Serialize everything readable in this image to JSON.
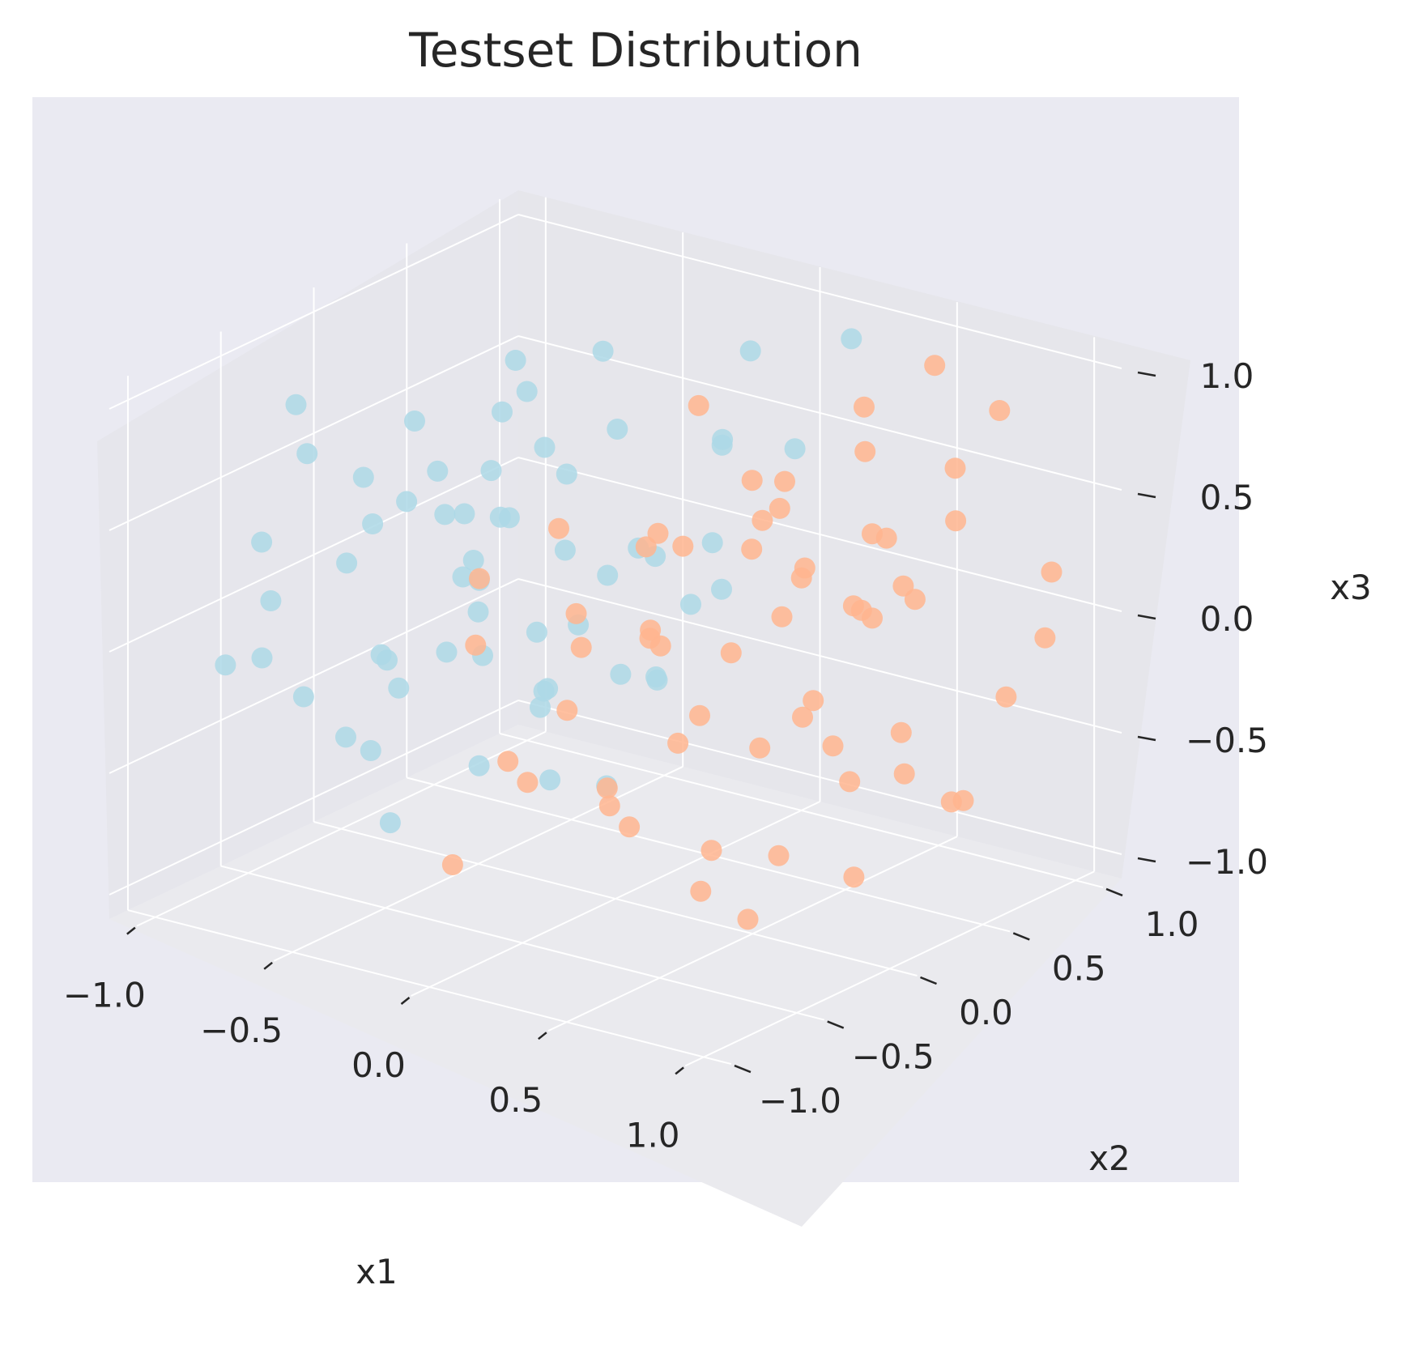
{
  "chart_data": {
    "type": "scatter",
    "projection": "3d",
    "title": "Testset Distribution",
    "xlabel": "x1",
    "ylabel": "x2",
    "zlabel": "x3",
    "xlim": [
      -1.1,
      1.1
    ],
    "ylim": [
      -1.1,
      1.1
    ],
    "zlim": [
      -1.1,
      1.1
    ],
    "xticks": [
      "−1.0",
      "−0.5",
      "0.0",
      "0.5",
      "1.0"
    ],
    "yticks": [
      "−1.0",
      "−0.5",
      "0.0",
      "0.5",
      "1.0"
    ],
    "zticks": [
      "−1.0",
      "−0.5",
      "0.0",
      "0.5",
      "1.0"
    ],
    "grid": true,
    "style": "seaborn-darkgrid",
    "colors": {
      "background": "#eaeaf2",
      "grid": "#ffffff",
      "blue_points": "#add8e6",
      "orange_points": "#ffb58f"
    },
    "series": [
      {
        "color": "#add8e6",
        "points": [
          [
            -0.95,
            -0.5,
            -0.2
          ],
          [
            -0.9,
            -0.35,
            -0.4
          ],
          [
            -0.85,
            -0.6,
            0.1
          ],
          [
            -0.8,
            0.1,
            0.6
          ],
          [
            -0.75,
            -0.2,
            0.3
          ],
          [
            -0.7,
            0.3,
            -0.1
          ],
          [
            -0.65,
            -0.7,
            0.8
          ],
          [
            -0.6,
            0.5,
            -0.6
          ],
          [
            -0.55,
            -0.4,
            -0.8
          ],
          [
            -0.5,
            0.2,
            0.9
          ],
          [
            -0.45,
            -0.1,
            0.2
          ],
          [
            -0.4,
            0.6,
            0.5
          ],
          [
            -0.35,
            -0.8,
            -0.3
          ],
          [
            -0.3,
            0.4,
            0.0
          ],
          [
            -0.25,
            -0.3,
            0.7
          ],
          [
            -0.2,
            0.7,
            -0.2
          ],
          [
            -0.15,
            -0.6,
            0.4
          ],
          [
            -0.1,
            0.1,
            -0.7
          ],
          [
            -0.05,
            0.8,
            0.85
          ],
          [
            0.0,
            -0.2,
            0.1
          ],
          [
            0.05,
            0.5,
            0.6
          ],
          [
            0.1,
            -0.5,
            -0.4
          ],
          [
            0.15,
            0.3,
            0.3
          ],
          [
            0.2,
            -0.7,
            0.0
          ],
          [
            0.25,
            0.9,
            0.95
          ],
          [
            -0.98,
            0.0,
            0.0
          ],
          [
            -0.92,
            0.4,
            0.25
          ],
          [
            -0.88,
            -0.8,
            -0.1
          ],
          [
            -0.82,
            0.6,
            0.45
          ],
          [
            -0.78,
            -0.3,
            -0.55
          ],
          [
            -0.72,
            0.8,
            0.15
          ],
          [
            -0.68,
            -0.9,
            0.5
          ],
          [
            -0.62,
            0.2,
            -0.35
          ],
          [
            -0.58,
            -0.5,
            0.65
          ],
          [
            -0.52,
            0.7,
            0.75
          ],
          [
            -0.48,
            -0.2,
            -0.15
          ],
          [
            -0.42,
            0.0,
            0.35
          ],
          [
            -0.38,
            -0.7,
            0.05
          ],
          [
            -0.32,
            0.5,
            -0.45
          ],
          [
            -0.28,
            -0.4,
            0.55
          ],
          [
            -0.22,
            0.9,
            0.4
          ],
          [
            -0.18,
            -0.1,
            -0.25
          ],
          [
            -0.12,
            0.3,
            0.2
          ],
          [
            -0.08,
            -0.8,
            0.75
          ],
          [
            -0.02,
            0.6,
            -0.05
          ],
          [
            0.02,
            -0.3,
            0.45
          ],
          [
            0.08,
            0.1,
            -0.2
          ],
          [
            0.12,
            -0.6,
            0.25
          ],
          [
            0.18,
            0.7,
            0.55
          ],
          [
            0.22,
            -0.1,
            -0.1
          ],
          [
            -0.96,
            0.25,
            -0.6
          ],
          [
            -0.86,
            -0.45,
            0.85
          ],
          [
            -0.76,
            0.55,
            0.05
          ],
          [
            -0.66,
            -0.15,
            0.4
          ],
          [
            -0.56,
            0.35,
            0.7
          ],
          [
            -0.46,
            -0.55,
            -0.05
          ],
          [
            -0.36,
            0.15,
            0.6
          ],
          [
            -0.26,
            -0.35,
            -0.5
          ],
          [
            -0.16,
            0.45,
            0.1
          ],
          [
            -0.06,
            -0.65,
            0.3
          ]
        ]
      },
      {
        "color": "#ffb58f",
        "points": [
          [
            0.05,
            -0.95,
            -0.6
          ],
          [
            0.1,
            -0.9,
            0.3
          ],
          [
            0.15,
            -0.8,
            -0.2
          ],
          [
            0.2,
            -0.6,
            0.7
          ],
          [
            0.25,
            -0.4,
            -0.5
          ],
          [
            0.3,
            -0.2,
            0.1
          ],
          [
            0.35,
            0.0,
            -0.8
          ],
          [
            0.4,
            0.2,
            0.5
          ],
          [
            0.45,
            0.4,
            -0.3
          ],
          [
            0.5,
            0.6,
            0.85
          ],
          [
            0.55,
            0.8,
            0.0
          ],
          [
            0.6,
            -0.7,
            0.4
          ],
          [
            0.65,
            -0.5,
            -0.7
          ],
          [
            0.7,
            -0.3,
            0.65
          ],
          [
            0.75,
            -0.1,
            -0.1
          ],
          [
            0.8,
            0.1,
            0.3
          ],
          [
            0.85,
            0.3,
            -0.45
          ],
          [
            0.9,
            0.5,
            0.75
          ],
          [
            0.95,
            0.7,
            -0.25
          ],
          [
            0.98,
            0.9,
            0.2
          ],
          [
            0.08,
            -0.85,
            0.55
          ],
          [
            0.12,
            -0.65,
            -0.35
          ],
          [
            0.18,
            -0.45,
            0.15
          ],
          [
            0.22,
            -0.25,
            -0.65
          ],
          [
            0.28,
            -0.05,
            0.45
          ],
          [
            0.32,
            0.15,
            -0.05
          ],
          [
            0.38,
            0.35,
            0.6
          ],
          [
            0.42,
            0.55,
            -0.55
          ],
          [
            0.48,
            0.75,
            0.25
          ],
          [
            0.52,
            0.95,
            0.9
          ],
          [
            0.58,
            -0.9,
            -0.15
          ],
          [
            0.62,
            -0.75,
            0.8
          ],
          [
            0.68,
            -0.55,
            0.05
          ],
          [
            0.72,
            -0.35,
            -0.85
          ],
          [
            0.78,
            -0.15,
            0.5
          ],
          [
            0.82,
            0.05,
            -0.4
          ],
          [
            0.88,
            0.25,
            0.35
          ],
          [
            0.92,
            0.45,
            -0.6
          ],
          [
            0.96,
            0.65,
            0.95
          ],
          [
            0.99,
            0.85,
            -0.05
          ],
          [
            0.06,
            -0.3,
            0.2
          ],
          [
            0.16,
            0.1,
            -0.45
          ],
          [
            0.26,
            0.5,
            0.4
          ],
          [
            0.36,
            0.85,
            -0.15
          ],
          [
            0.46,
            -0.45,
            0.7
          ],
          [
            0.56,
            -0.05,
            -0.3
          ],
          [
            0.66,
            0.35,
            0.15
          ],
          [
            0.76,
            0.75,
            -0.75
          ],
          [
            0.86,
            -0.25,
            0.6
          ],
          [
            0.94,
            0.15,
            -0.2
          ],
          [
            0.1,
            0.3,
            0.85
          ],
          [
            0.2,
            0.6,
            -0.1
          ],
          [
            0.3,
            0.9,
            0.5
          ],
          [
            0.4,
            -0.85,
            0.1
          ],
          [
            0.5,
            -0.55,
            0.35
          ],
          [
            0.6,
            -0.15,
            0.85
          ],
          [
            0.7,
            0.25,
            -0.9
          ],
          [
            0.8,
            0.65,
            0.45
          ],
          [
            0.9,
            -0.45,
            -0.5
          ],
          [
            0.97,
            -0.05,
            0.7
          ]
        ]
      }
    ]
  }
}
